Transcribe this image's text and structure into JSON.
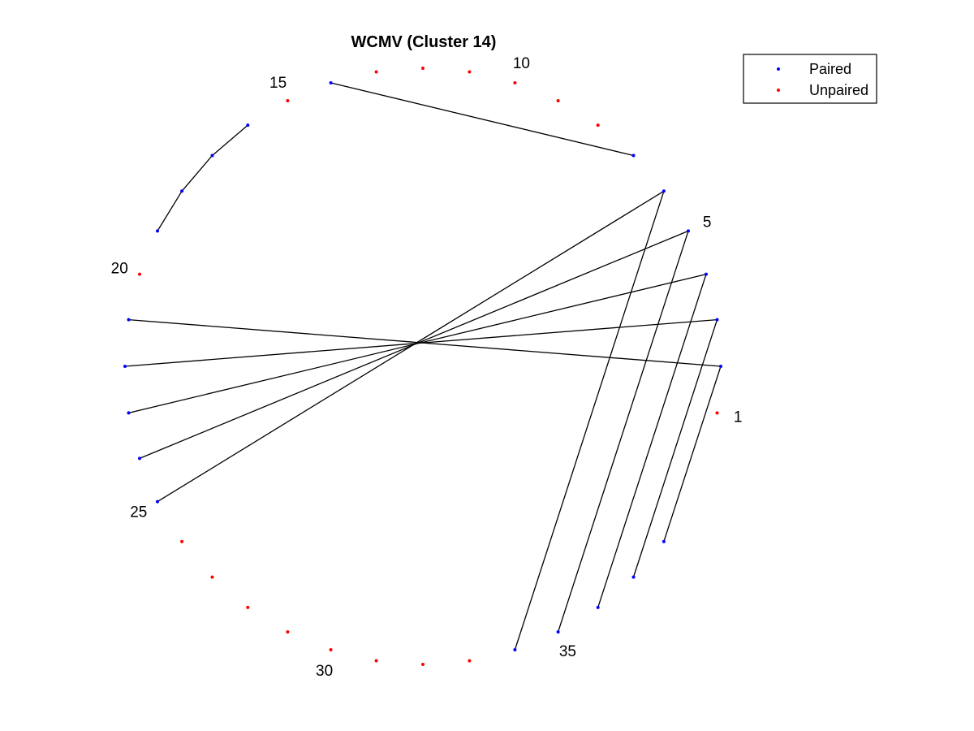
{
  "chart_data": {
    "type": "scatter",
    "title": "WCMV (Cluster 14)",
    "n_positions": 38,
    "position_labels": [
      1,
      5,
      10,
      15,
      20,
      25,
      30,
      35
    ],
    "pairs": [
      [
        2,
        38
      ],
      [
        3,
        37
      ],
      [
        4,
        36
      ],
      [
        5,
        35
      ],
      [
        6,
        34
      ],
      [
        14,
        7
      ],
      [
        16,
        17
      ],
      [
        17,
        18
      ],
      [
        18,
        19
      ],
      [
        21,
        2
      ],
      [
        22,
        3
      ],
      [
        23,
        4
      ],
      [
        24,
        5
      ],
      [
        25,
        6
      ]
    ],
    "series": [
      {
        "name": "Paired",
        "color": "#0000ff",
        "positions": [
          2,
          3,
          4,
          5,
          6,
          7,
          14,
          16,
          17,
          18,
          19,
          21,
          22,
          23,
          24,
          25,
          34,
          35,
          36,
          37,
          38
        ]
      },
      {
        "name": "Unpaired",
        "color": "#ff0000",
        "positions": [
          1,
          8,
          9,
          10,
          11,
          12,
          13,
          15,
          20,
          26,
          27,
          28,
          29,
          30,
          31,
          32,
          33
        ]
      }
    ],
    "legend_position": "top-right",
    "grid": false
  }
}
